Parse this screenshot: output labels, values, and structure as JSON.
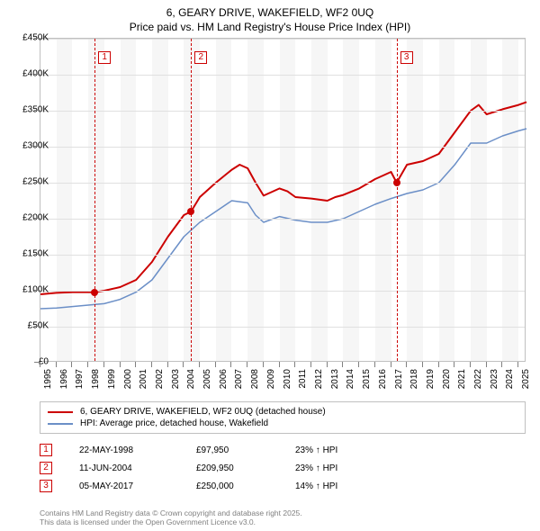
{
  "title_line1": "6, GEARY DRIVE, WAKEFIELD, WF2 0UQ",
  "title_line2": "Price paid vs. HM Land Registry's House Price Index (HPI)",
  "chart": {
    "type": "line",
    "background_color": "#ffffff",
    "alt_band_color": "#f6f6f6",
    "grid_color": "#e0e0e0",
    "border_color": "#c0c0c0",
    "font_size_labels": 10,
    "x_start": 1995,
    "x_end": 2025.5,
    "y_min": 0,
    "y_max": 450000,
    "y_tick_step": 50000,
    "y_tick_labels": [
      "£0",
      "£50K",
      "£100K",
      "£150K",
      "£200K",
      "£250K",
      "£300K",
      "£350K",
      "£400K",
      "£450K"
    ],
    "x_ticks": [
      1995,
      1996,
      1997,
      1998,
      1999,
      2000,
      2001,
      2002,
      2003,
      2004,
      2005,
      2006,
      2007,
      2008,
      2009,
      2010,
      2011,
      2012,
      2013,
      2014,
      2015,
      2016,
      2017,
      2018,
      2019,
      2020,
      2021,
      2022,
      2023,
      2024,
      2025
    ],
    "series": [
      {
        "name": "6, GEARY DRIVE, WAKEFIELD, WF2 0UQ (detached house)",
        "color": "#cc0000",
        "width": 2,
        "points": [
          [
            1995,
            95000
          ],
          [
            1996,
            97000
          ],
          [
            1997,
            98000
          ],
          [
            1998,
            98000
          ],
          [
            1998.4,
            97950
          ],
          [
            1999,
            100000
          ],
          [
            2000,
            105000
          ],
          [
            2001,
            115000
          ],
          [
            2002,
            140000
          ],
          [
            2003,
            175000
          ],
          [
            2004,
            205000
          ],
          [
            2004.45,
            209950
          ],
          [
            2005,
            230000
          ],
          [
            2006,
            250000
          ],
          [
            2007,
            268000
          ],
          [
            2007.5,
            275000
          ],
          [
            2008,
            270000
          ],
          [
            2008.5,
            250000
          ],
          [
            2009,
            232000
          ],
          [
            2010,
            242000
          ],
          [
            2010.5,
            238000
          ],
          [
            2011,
            230000
          ],
          [
            2012,
            228000
          ],
          [
            2013,
            225000
          ],
          [
            2013.5,
            230000
          ],
          [
            2014,
            233000
          ],
          [
            2015,
            242000
          ],
          [
            2016,
            255000
          ],
          [
            2016.5,
            260000
          ],
          [
            2017,
            265000
          ],
          [
            2017.35,
            250000
          ],
          [
            2018,
            275000
          ],
          [
            2019,
            280000
          ],
          [
            2020,
            290000
          ],
          [
            2021,
            320000
          ],
          [
            2022,
            350000
          ],
          [
            2022.5,
            358000
          ],
          [
            2023,
            345000
          ],
          [
            2024,
            352000
          ],
          [
            2025,
            358000
          ],
          [
            2025.5,
            362000
          ]
        ]
      },
      {
        "name": "HPI: Average price, detached house, Wakefield",
        "color": "#6b8fc7",
        "width": 1.5,
        "points": [
          [
            1995,
            75000
          ],
          [
            1996,
            76000
          ],
          [
            1997,
            78000
          ],
          [
            1998,
            80000
          ],
          [
            1999,
            82000
          ],
          [
            2000,
            88000
          ],
          [
            2001,
            98000
          ],
          [
            2002,
            115000
          ],
          [
            2003,
            145000
          ],
          [
            2004,
            175000
          ],
          [
            2005,
            195000
          ],
          [
            2006,
            210000
          ],
          [
            2007,
            225000
          ],
          [
            2008,
            222000
          ],
          [
            2008.5,
            205000
          ],
          [
            2009,
            195000
          ],
          [
            2010,
            203000
          ],
          [
            2011,
            198000
          ],
          [
            2012,
            195000
          ],
          [
            2013,
            195000
          ],
          [
            2014,
            200000
          ],
          [
            2015,
            210000
          ],
          [
            2016,
            220000
          ],
          [
            2017,
            228000
          ],
          [
            2018,
            235000
          ],
          [
            2019,
            240000
          ],
          [
            2020,
            250000
          ],
          [
            2021,
            275000
          ],
          [
            2022,
            305000
          ],
          [
            2023,
            305000
          ],
          [
            2024,
            315000
          ],
          [
            2025,
            322000
          ],
          [
            2025.5,
            325000
          ]
        ]
      }
    ],
    "vlines": [
      {
        "x": 1998.4,
        "color": "#cc0000",
        "label": "1",
        "label_color": "#cc0000"
      },
      {
        "x": 2004.45,
        "color": "#cc0000",
        "label": "2",
        "label_color": "#cc0000"
      },
      {
        "x": 2017.35,
        "color": "#cc0000",
        "label": "3",
        "label_color": "#cc0000"
      }
    ],
    "markers": [
      {
        "x": 1998.4,
        "y": 97950,
        "color": "#cc0000"
      },
      {
        "x": 2004.45,
        "y": 209950,
        "color": "#cc0000"
      },
      {
        "x": 2017.35,
        "y": 250000,
        "color": "#cc0000"
      }
    ]
  },
  "legend": {
    "items": [
      {
        "color": "#cc0000",
        "label": "6, GEARY DRIVE, WAKEFIELD, WF2 0UQ (detached house)"
      },
      {
        "color": "#6b8fc7",
        "label": "HPI: Average price, detached house, Wakefield"
      }
    ]
  },
  "sales": [
    {
      "num": "1",
      "date": "22-MAY-1998",
      "price": "£97,950",
      "hpi": "23% ↑ HPI"
    },
    {
      "num": "2",
      "date": "11-JUN-2004",
      "price": "£209,950",
      "hpi": "23% ↑ HPI"
    },
    {
      "num": "3",
      "date": "05-MAY-2017",
      "price": "£250,000",
      "hpi": "14% ↑ HPI"
    }
  ],
  "footer_line1": "Contains HM Land Registry data © Crown copyright and database right 2025.",
  "footer_line2": "This data is licensed under the Open Government Licence v3.0."
}
